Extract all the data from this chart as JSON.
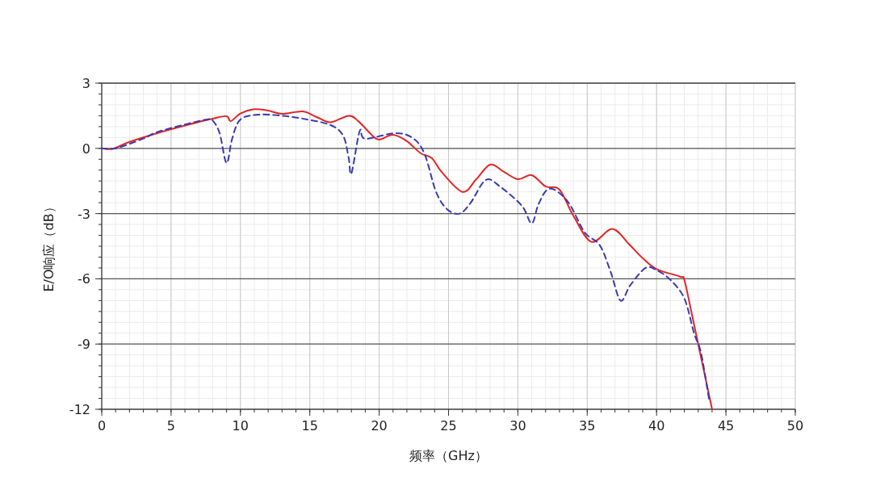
{
  "chart_data": {
    "type": "line",
    "xlabel": "频率（GHz）",
    "ylabel": "E/O响应（dB）",
    "xlim": [
      0,
      50
    ],
    "xticks": [
      0,
      5,
      10,
      15,
      20,
      25,
      30,
      35,
      40,
      45,
      50
    ],
    "ylim": [
      -12,
      3
    ],
    "yticks": [
      -12,
      -9,
      -6,
      -3,
      0,
      3
    ],
    "grid": true,
    "series": [
      {
        "color": "#e02626",
        "line_style": "solid",
        "x": [
          0,
          0.8,
          2,
          4,
          6,
          8,
          9,
          9.3,
          10,
          11,
          12,
          13,
          14.5,
          15.5,
          16.5,
          17.8,
          18.5,
          19.5,
          20,
          21,
          22,
          23,
          23.8,
          24.5,
          26,
          27,
          28,
          29,
          30,
          31,
          32,
          33,
          34,
          35.3,
          36.8,
          38,
          39,
          40,
          41.7,
          42,
          42.5,
          43,
          44
        ],
        "values": [
          0,
          -0.02,
          0.3,
          0.7,
          1.05,
          1.37,
          1.48,
          1.25,
          1.6,
          1.8,
          1.74,
          1.59,
          1.7,
          1.44,
          1.2,
          1.5,
          1.25,
          0.6,
          0.4,
          0.62,
          0.33,
          -0.23,
          -0.45,
          -1.08,
          -2.0,
          -1.42,
          -0.75,
          -1.08,
          -1.42,
          -1.23,
          -1.75,
          -1.9,
          -3.1,
          -4.3,
          -3.7,
          -4.4,
          -5.05,
          -5.55,
          -5.9,
          -6.05,
          -7.5,
          -9.0,
          -12
        ]
      },
      {
        "color": "#3a3ab4",
        "line_style": "dashed",
        "x": [
          0,
          1,
          3,
          4,
          6,
          7.6,
          8,
          8.5,
          9,
          9.4,
          10,
          11.3,
          13,
          14.8,
          16.5,
          17.4,
          17.8,
          18,
          18.6,
          19,
          21.2,
          22.5,
          23.3,
          24.1,
          24.9,
          25.8,
          26.6,
          27.7,
          28.8,
          30.3,
          31,
          31.5,
          32.3,
          33.6,
          34.8,
          35.9,
          36.7,
          37.4,
          38.1,
          39.2,
          40,
          41,
          42,
          42.7,
          43.2,
          43.8
        ],
        "values": [
          0,
          0,
          0.45,
          0.75,
          1.1,
          1.33,
          1.28,
          0.7,
          -0.68,
          0.44,
          1.33,
          1.55,
          1.5,
          1.33,
          1.07,
          0.59,
          -0.42,
          -1.15,
          0.8,
          0.44,
          0.7,
          0.44,
          -0.3,
          -2.0,
          -2.8,
          -3.0,
          -2.5,
          -1.45,
          -1.8,
          -2.65,
          -3.45,
          -2.55,
          -1.85,
          -2.45,
          -3.85,
          -4.45,
          -5.7,
          -7.0,
          -6.3,
          -5.5,
          -5.6,
          -6.05,
          -6.9,
          -8.5,
          -9.4,
          -11.6
        ]
      }
    ]
  }
}
